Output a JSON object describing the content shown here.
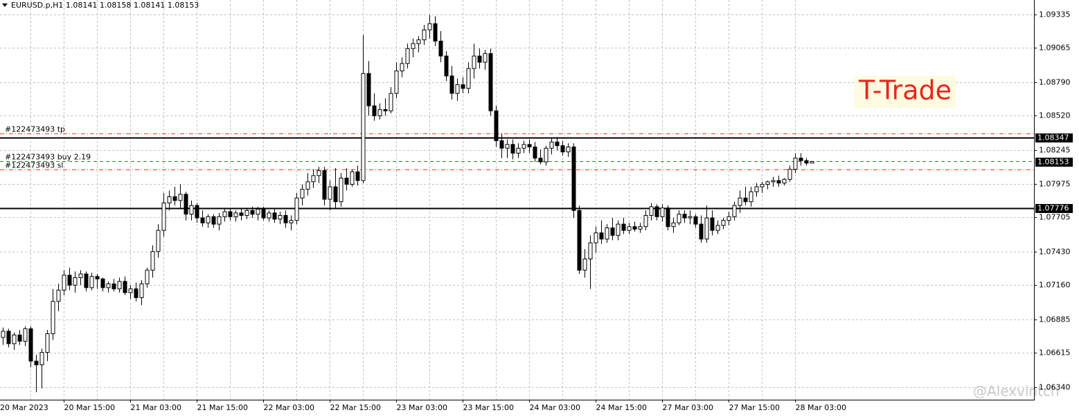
{
  "chart_data": {
    "type": "candlestick",
    "symbol": "EURUSD.p,H1",
    "categories": [
      "20 Mar 2023",
      null,
      null,
      null,
      null,
      null,
      null,
      null,
      null,
      null,
      null,
      null,
      "20 Mar 15:00",
      null,
      null,
      null,
      null,
      null,
      null,
      null,
      null,
      null,
      null,
      null,
      "21 Mar 03:00",
      null,
      null,
      null,
      null,
      null,
      null,
      null,
      null,
      null,
      null,
      null,
      "21 Mar 15:00",
      null,
      null,
      null,
      null,
      null,
      null,
      null,
      null,
      null,
      null,
      null,
      "22 Mar 03:00",
      null,
      null,
      null,
      null,
      null,
      null,
      null,
      null,
      null,
      null,
      null,
      "22 Mar 15:00",
      null,
      null,
      null,
      null,
      null,
      null,
      null,
      null,
      null,
      null,
      null,
      "23 Mar 03:00",
      null,
      null,
      null,
      null,
      null,
      null,
      null,
      null,
      null,
      null,
      null,
      "23 Mar 15:00",
      null,
      null,
      null,
      null,
      null,
      null,
      null,
      null,
      null,
      null,
      null,
      "24 Mar 03:00",
      null,
      null,
      null,
      null,
      null,
      null,
      null,
      null,
      null,
      null,
      null,
      "24 Mar 15:00",
      null,
      null,
      null,
      null,
      null,
      null,
      null,
      null,
      null,
      null,
      null,
      "27 Mar 03:00",
      null,
      null,
      null,
      null,
      null,
      null,
      null,
      null,
      null,
      null,
      null,
      "27 Mar 15:00",
      null,
      null,
      null,
      null,
      null,
      null,
      null,
      null,
      null,
      null,
      null,
      "28 Mar 03:00",
      null,
      null,
      null
    ],
    "open": [
      1.068,
      1.0674,
      1.0679,
      1.0669,
      1.0676,
      1.0671,
      1.0681,
      1.0655,
      1.0652,
      1.0662,
      1.0677,
      1.0703,
      1.0712,
      1.0724,
      1.0716,
      1.0722,
      1.0725,
      1.0714,
      1.0723,
      1.0721,
      1.0714,
      1.0717,
      1.0713,
      1.0719,
      1.071,
      1.0713,
      1.0706,
      1.0717,
      1.0728,
      1.0743,
      1.076,
      1.0782,
      1.0787,
      1.0784,
      1.0789,
      1.0773,
      1.078,
      1.077,
      1.0766,
      1.0771,
      1.0765,
      1.0771,
      1.0775,
      1.0771,
      1.0774,
      1.0772,
      1.0776,
      1.0773,
      1.0777,
      1.077,
      1.0774,
      1.0769,
      1.0772,
      1.0766,
      1.0768,
      1.0786,
      1.0793,
      1.0799,
      1.0804,
      1.0808,
      1.0785,
      1.0795,
      1.0783,
      1.0802,
      1.0797,
      1.0807,
      1.08,
      1.0886,
      1.086,
      1.0852,
      1.0857,
      1.0856,
      1.087,
      1.0888,
      1.0894,
      1.0906,
      1.091,
      1.0913,
      1.0921,
      1.0926,
      1.0912,
      1.09,
      1.0884,
      1.087,
      1.0877,
      1.0874,
      1.089,
      1.09,
      1.0895,
      1.0902,
      1.0856,
      1.0832,
      1.0826,
      1.0829,
      1.0822,
      1.0826,
      1.0829,
      1.0827,
      1.0818,
      1.0815,
      1.0826,
      1.0831,
      1.0828,
      1.0823,
      1.0827,
      1.0776,
      1.0728,
      1.0737,
      1.075,
      1.0758,
      1.0753,
      1.0762,
      1.0756,
      1.0765,
      1.076,
      1.0763,
      1.0761,
      1.0763,
      1.0772,
      1.0779,
      1.0771,
      1.0778,
      1.0763,
      1.0766,
      1.0773,
      1.077,
      1.0771,
      1.0765,
      1.0753,
      1.077,
      1.076,
      1.0764,
      1.0768,
      1.0771,
      1.078,
      1.0786,
      1.0783,
      1.0791,
      1.0795,
      1.0797,
      1.0799,
      1.08,
      1.0798,
      1.0801,
      1.0809,
      1.0818,
      1.0816,
      1.08141
    ],
    "high": [
      1.069,
      1.0682,
      1.0681,
      1.0678,
      1.068,
      1.0683,
      1.0683,
      1.066,
      1.0665,
      1.068,
      1.0713,
      1.0717,
      1.0728,
      1.073,
      1.0727,
      1.0728,
      1.0727,
      1.0726,
      1.0725,
      1.0722,
      1.0719,
      1.0721,
      1.0722,
      1.0723,
      1.0716,
      1.0718,
      1.072,
      1.073,
      1.0748,
      1.0765,
      1.079,
      1.0792,
      1.0795,
      1.0797,
      1.0791,
      1.0784,
      1.0782,
      1.0776,
      1.0773,
      1.0773,
      1.0774,
      1.0778,
      1.0778,
      1.0776,
      1.0777,
      1.0778,
      1.0779,
      1.0779,
      1.0779,
      1.0776,
      1.0777,
      1.0775,
      1.0776,
      1.0772,
      1.079,
      1.0797,
      1.0806,
      1.0809,
      1.0811,
      1.0811,
      1.08,
      1.081,
      1.0806,
      1.081,
      1.0809,
      1.0812,
      1.0917,
      1.0896,
      1.087,
      1.0862,
      1.0866,
      1.0875,
      1.0895,
      1.0899,
      1.091,
      1.0914,
      1.0916,
      1.0925,
      1.0933,
      1.0932,
      1.092,
      1.0904,
      1.0892,
      1.0882,
      1.0883,
      1.0895,
      1.091,
      1.0906,
      1.0905,
      1.0906,
      1.086,
      1.0838,
      1.0833,
      1.0833,
      1.083,
      1.0832,
      1.0833,
      1.0831,
      1.0825,
      1.0828,
      1.0834,
      1.0835,
      1.0832,
      1.083,
      1.083,
      1.078,
      1.0745,
      1.0756,
      1.0763,
      1.0768,
      1.0765,
      1.077,
      1.0768,
      1.077,
      1.0766,
      1.0767,
      1.0766,
      1.0776,
      1.0782,
      1.0781,
      1.0781,
      1.078,
      1.077,
      1.0776,
      1.0776,
      1.0776,
      1.0773,
      1.0772,
      1.078,
      1.0776,
      1.0768,
      1.077,
      1.0775,
      1.0783,
      1.0792,
      1.0795,
      1.0795,
      1.0798,
      1.0799,
      1.08,
      1.0803,
      1.0804,
      1.0802,
      1.0812,
      1.0822,
      1.0822,
      1.0818,
      1.08158
    ],
    "low": [
      1.0672,
      1.0668,
      1.0666,
      1.0664,
      1.0668,
      1.0667,
      1.065,
      1.063,
      1.0633,
      1.0655,
      1.0672,
      1.0695,
      1.0708,
      1.0712,
      1.071,
      1.0716,
      1.0711,
      1.0712,
      1.0713,
      1.0711,
      1.071,
      1.0711,
      1.071,
      1.0708,
      1.0705,
      1.0703,
      1.07,
      1.0714,
      1.0722,
      1.0738,
      1.0755,
      1.0776,
      1.078,
      1.0778,
      1.0768,
      1.0768,
      1.0766,
      1.0763,
      1.0762,
      1.0762,
      1.076,
      1.0767,
      1.0768,
      1.0767,
      1.0768,
      1.0769,
      1.077,
      1.0768,
      1.0768,
      1.0767,
      1.0766,
      1.0765,
      1.0762,
      1.076,
      1.0765,
      1.078,
      1.0788,
      1.0794,
      1.0798,
      1.078,
      1.0776,
      1.0778,
      1.0779,
      1.0792,
      1.0795,
      1.0796,
      1.0798,
      1.0852,
      1.0848,
      1.0849,
      1.0852,
      1.0854,
      1.0866,
      1.0883,
      1.089,
      1.0899,
      1.0903,
      1.0909,
      1.0914,
      1.0908,
      1.0895,
      1.088,
      1.0865,
      1.0864,
      1.087,
      1.087,
      1.0882,
      1.089,
      1.0889,
      1.0852,
      1.0827,
      1.0818,
      1.0818,
      1.0817,
      1.0818,
      1.0822,
      1.0822,
      1.0815,
      1.0813,
      1.0812,
      1.0821,
      1.0824,
      1.082,
      1.0819,
      1.077,
      1.0725,
      1.0722,
      1.0713,
      1.0742,
      1.0749,
      1.075,
      1.0752,
      1.0752,
      1.0757,
      1.0757,
      1.0759,
      1.0758,
      1.076,
      1.0768,
      1.0768,
      1.0767,
      1.076,
      1.0758,
      1.0764,
      1.0766,
      1.0765,
      1.0762,
      1.075,
      1.075,
      1.0756,
      1.0757,
      1.0761,
      1.0764,
      1.0768,
      1.0774,
      1.078,
      1.0779,
      1.0787,
      1.079,
      1.0793,
      1.0795,
      1.0795,
      1.0796,
      1.0799,
      1.0806,
      1.0812,
      1.0812,
      1.08141
    ],
    "close": [
      1.0674,
      1.0679,
      1.0669,
      1.0676,
      1.0671,
      1.0681,
      1.0655,
      1.0652,
      1.0662,
      1.0677,
      1.0703,
      1.0712,
      1.0724,
      1.0716,
      1.0722,
      1.0725,
      1.0714,
      1.0723,
      1.0721,
      1.0714,
      1.0717,
      1.0713,
      1.0719,
      1.071,
      1.0713,
      1.0706,
      1.0717,
      1.0728,
      1.0743,
      1.076,
      1.0782,
      1.0787,
      1.0784,
      1.0789,
      1.0773,
      1.078,
      1.077,
      1.0766,
      1.0771,
      1.0765,
      1.0771,
      1.0775,
      1.0771,
      1.0774,
      1.0772,
      1.0776,
      1.0773,
      1.0777,
      1.077,
      1.0774,
      1.0769,
      1.0772,
      1.0766,
      1.0768,
      1.0786,
      1.0793,
      1.0799,
      1.0804,
      1.0808,
      1.0785,
      1.0795,
      1.0783,
      1.0802,
      1.0797,
      1.0807,
      1.08,
      1.0886,
      1.086,
      1.0852,
      1.0857,
      1.0856,
      1.087,
      1.0888,
      1.0894,
      1.0906,
      1.091,
      1.0913,
      1.0921,
      1.0926,
      1.0912,
      1.09,
      1.0884,
      1.087,
      1.0877,
      1.0874,
      1.089,
      1.09,
      1.0895,
      1.0902,
      1.0856,
      1.0832,
      1.0826,
      1.0829,
      1.0822,
      1.0826,
      1.0829,
      1.0827,
      1.0818,
      1.0815,
      1.0826,
      1.0831,
      1.0828,
      1.0823,
      1.0827,
      1.0776,
      1.0728,
      1.0737,
      1.075,
      1.0758,
      1.0753,
      1.0762,
      1.0756,
      1.0765,
      1.076,
      1.0763,
      1.0761,
      1.0763,
      1.0772,
      1.0779,
      1.0771,
      1.0778,
      1.0763,
      1.0766,
      1.0773,
      1.077,
      1.0771,
      1.0765,
      1.0753,
      1.077,
      1.076,
      1.0764,
      1.0768,
      1.0771,
      1.078,
      1.0786,
      1.0783,
      1.0791,
      1.0795,
      1.0797,
      1.0799,
      1.08,
      1.0798,
      1.0801,
      1.0809,
      1.0818,
      1.0816,
      1.0814,
      1.08153
    ],
    "up_color": "#ffffff",
    "down_color": "#000000",
    "outline_color": "#000000",
    "ylim": [
      1.0624,
      1.0945
    ],
    "yticks": [
      {
        "value": 1.0634,
        "label": "1.06340"
      },
      1.06615,
      1.06885,
      {
        "value": 1.0716,
        "label": "1.07160"
      },
      {
        "value": 1.0743,
        "label": "1.07430"
      },
      1.07705,
      1.07975,
      1.08245,
      {
        "value": 1.0852,
        "label": "1.08520"
      },
      {
        "value": 1.0879,
        "label": "1.08790"
      },
      1.09065,
      1.09335
    ],
    "grid": true,
    "levels": [
      1.08347,
      1.07776
    ],
    "orders": [
      {
        "label": "#122473493 tp",
        "price": 1.08376,
        "color": "#e0401f",
        "style": "dashdot"
      },
      {
        "label": "#122473493 buy 2.19",
        "price": 1.08154,
        "color": "#1e8c1e",
        "style": "dashed"
      },
      {
        "label": "#122473493 sl",
        "price": 1.08087,
        "color": "#e0401f",
        "style": "dashdot"
      }
    ],
    "watermark": "T-Trade",
    "signature": "@Alexvintch"
  }
}
